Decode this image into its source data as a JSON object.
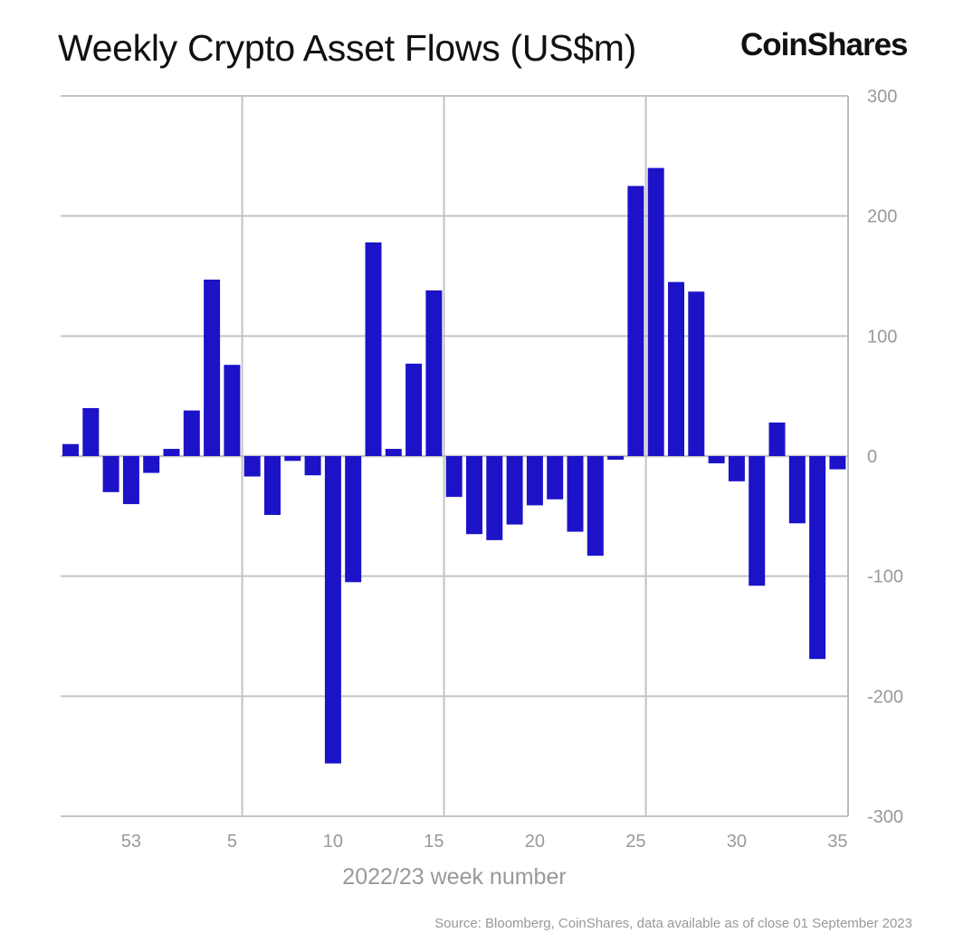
{
  "title": "Weekly Crypto Asset Flows (US$m)",
  "logo": "CoinShares",
  "source": "Source: Bloomberg, CoinShares, data available as of close 01 September 2023",
  "chart_data": {
    "type": "bar",
    "title": "Weekly Crypto Asset Flows (US$m)",
    "xlabel": "2022/23 week number",
    "ylabel": "",
    "ylim": [
      -300,
      300
    ],
    "yticks": [
      300,
      200,
      100,
      0,
      -100,
      -200,
      -300
    ],
    "y_axis_side": "right",
    "xtick_labels": [
      "53",
      "5",
      "10",
      "15",
      "20",
      "25",
      "30",
      "35"
    ],
    "grid": true,
    "bar_color": "#1c12c8",
    "categories": [
      "50",
      "51",
      "52",
      "53",
      "1",
      "2",
      "3",
      "4",
      "5",
      "6",
      "7",
      "8",
      "9",
      "10",
      "11",
      "12",
      "13",
      "14",
      "15",
      "16",
      "17",
      "18",
      "19",
      "20",
      "21",
      "22",
      "23",
      "24",
      "25",
      "26",
      "27",
      "28",
      "29",
      "30",
      "31",
      "32",
      "33",
      "34",
      "35"
    ],
    "values": [
      10,
      40,
      -30,
      -40,
      -14,
      6,
      38,
      147,
      76,
      -17,
      -49,
      -4,
      -16,
      -256,
      -105,
      178,
      6,
      77,
      138,
      -34,
      -65,
      -70,
      -57,
      -41,
      -36,
      -63,
      -83,
      -3,
      225,
      240,
      145,
      137,
      -6,
      -21,
      -108,
      28,
      -56,
      -169,
      -11
    ]
  }
}
